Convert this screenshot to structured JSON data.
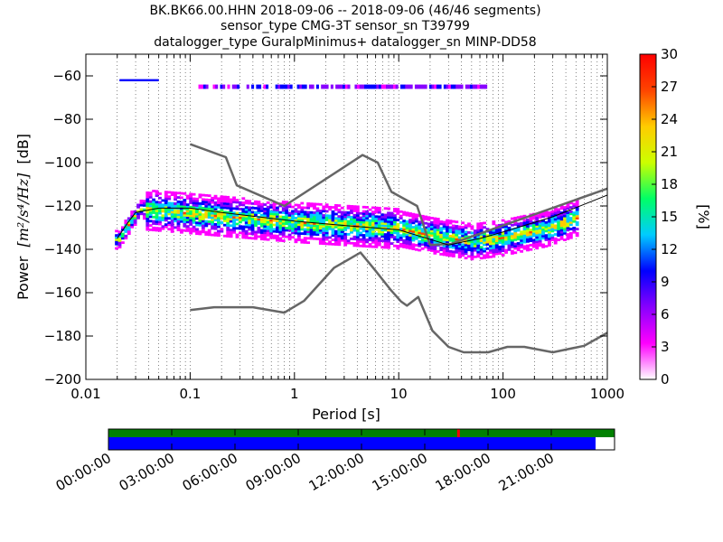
{
  "chart_data": {
    "type": "heatmap",
    "title_lines": [
      "BK.BK66.00.HHN   2018-09-06 -- 2018-09-06  (46/46 segments)",
      "sensor_type CMG-3T sensor_sn T39799",
      "datalogger_type GuralpMinimus+ datalogger_sn MINP-DD58"
    ],
    "xlabel": "Period [s]",
    "ylabel_prefix": "Power",
    "ylabel_unit": "[m²/s⁴/Hz]",
    "ylabel_suffix": "[dB]",
    "x_scale": "log",
    "xlim": [
      0.01,
      1000
    ],
    "ylim": [
      -200,
      -50
    ],
    "x_ticks": [
      0.01,
      0.1,
      1,
      10,
      100,
      1000
    ],
    "x_tick_labels": [
      "0.01",
      "0.1",
      "1",
      "10",
      "100",
      "1000"
    ],
    "y_ticks": [
      -200,
      -180,
      -160,
      -140,
      -120,
      -100,
      -80,
      -60
    ],
    "y_tick_labels": [
      "−200",
      "−180",
      "−160",
      "−140",
      "−120",
      "−100",
      "−80",
      "−60"
    ],
    "grid": "dotted vertical",
    "colorbar": {
      "label": "[%]",
      "range": [
        0,
        30
      ],
      "ticks": [
        0,
        3,
        6,
        9,
        12,
        15,
        18,
        21,
        24,
        27,
        30
      ],
      "colormap": [
        "#ffffff",
        "#ff00ff",
        "#8800ff",
        "#0000ff",
        "#00ccff",
        "#00ff66",
        "#ccff00",
        "#ffcc00",
        "#ff4400",
        "#ff0000"
      ]
    },
    "series": [
      {
        "name": "",
        "color": "#666666",
        "points": [
          [
            0.1,
            -91.5
          ],
          [
            0.22,
            -97.5
          ],
          [
            0.28,
            -110.5
          ],
          [
            0.8,
            -120
          ],
          [
            4.5,
            -96.5
          ],
          [
            6.3,
            -100
          ],
          [
            8.5,
            -113.5
          ],
          [
            15,
            -120
          ],
          [
            20,
            -138
          ],
          [
            31.6,
            -137.5
          ],
          [
            1000,
            -112
          ]
        ]
      },
      {
        "name": "",
        "color": "#666666",
        "points": [
          [
            0.1,
            -168
          ],
          [
            0.17,
            -166.7
          ],
          [
            0.4,
            -166.7
          ],
          [
            0.8,
            -169.2
          ],
          [
            1.24,
            -163.7
          ],
          [
            2.4,
            -148.5
          ],
          [
            4.3,
            -141.5
          ],
          [
            5.9,
            -149.5
          ],
          [
            8.3,
            -158.5
          ],
          [
            10.5,
            -164
          ],
          [
            12,
            -166
          ],
          [
            15.4,
            -162
          ],
          [
            21,
            -177.5
          ],
          [
            30,
            -185
          ],
          [
            42,
            -187.5
          ],
          [
            72,
            -187.5
          ],
          [
            110,
            -185
          ],
          [
            160,
            -185
          ],
          [
            300,
            -187.5
          ],
          [
            600,
            -184.5
          ],
          [
            1000,
            -178.5
          ]
        ]
      },
      {
        "name": "",
        "color": "#000000",
        "points": [
          [
            0.02,
            -135
          ],
          [
            0.025,
            -128
          ],
          [
            0.03,
            -123
          ],
          [
            0.05,
            -121
          ],
          [
            0.1,
            -121
          ],
          [
            0.2,
            -123
          ],
          [
            1,
            -127
          ],
          [
            3,
            -129
          ],
          [
            10,
            -131
          ],
          [
            30,
            -138
          ],
          [
            60,
            -135
          ],
          [
            100,
            -132
          ],
          [
            300,
            -125
          ],
          [
            1000,
            -115
          ]
        ]
      }
    ],
    "timeline": {
      "tick_labels": [
        "00:00:00",
        "03:00:00",
        "06:00:00",
        "09:00:00",
        "12:00:00",
        "15:00:00",
        "18:00:00",
        "21:00:00"
      ],
      "range_hours": [
        0,
        24
      ],
      "data_coverage_hours": [
        0,
        23.1
      ],
      "gap_marker_hours": 16.6,
      "colors": {
        "segments": "#008000",
        "coverage": "#0000ff",
        "gap": "#ff0000"
      }
    }
  }
}
